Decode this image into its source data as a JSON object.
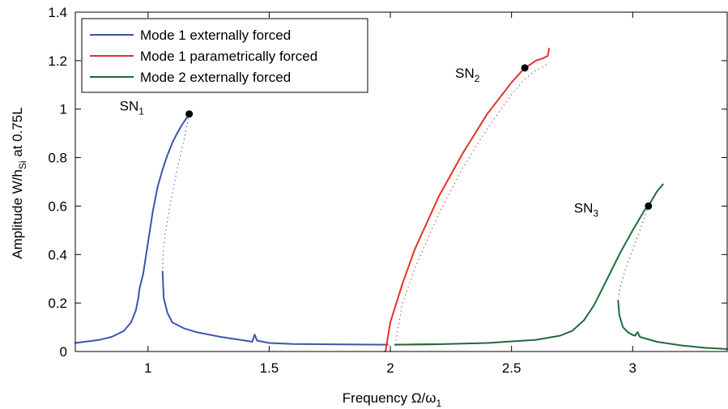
{
  "chart_data": {
    "type": "line",
    "xlabel": "Frequency Ω/ω",
    "xlabel_sub": "1",
    "ylabel": "Amplitude W/h",
    "ylabel_sub": "Si",
    "ylabel_suffix": " at 0.75L",
    "xlim": [
      0.7,
      3.39
    ],
    "ylim": [
      0,
      1.4
    ],
    "xticks": [
      1,
      1.5,
      2,
      2.5,
      3
    ],
    "xtick_labels": [
      "1",
      "1.5",
      "2",
      "2.5",
      "3"
    ],
    "yticks": [
      0,
      0.2,
      0.4,
      0.6,
      0.8,
      1,
      1.2,
      1.4
    ],
    "ytick_labels": [
      "0",
      "0.2",
      "0.4",
      "0.6",
      "0.8",
      "1",
      "1.2",
      "1.4"
    ],
    "grid": false,
    "legend_position": "top-left",
    "series": [
      {
        "name": "Mode 1 externally forced",
        "color": "#3a57a8",
        "stable": [
          [
            [
              0.7,
              0.035
            ],
            [
              0.8,
              0.048
            ],
            [
              0.85,
              0.06
            ],
            [
              0.9,
              0.085
            ],
            [
              0.93,
              0.12
            ],
            [
              0.95,
              0.17
            ],
            [
              0.96,
              0.22
            ],
            [
              0.965,
              0.26
            ],
            [
              0.98,
              0.32
            ],
            [
              1.0,
              0.45
            ],
            [
              1.02,
              0.58
            ],
            [
              1.04,
              0.68
            ],
            [
              1.06,
              0.75
            ],
            [
              1.08,
              0.81
            ],
            [
              1.1,
              0.86
            ],
            [
              1.12,
              0.9
            ],
            [
              1.14,
              0.935
            ],
            [
              1.16,
              0.965
            ],
            [
              1.17,
              0.98
            ]
          ],
          [
            [
              1.06,
              0.33
            ],
            [
              1.065,
              0.22
            ],
            [
              1.08,
              0.16
            ],
            [
              1.1,
              0.12
            ],
            [
              1.15,
              0.095
            ],
            [
              1.2,
              0.08
            ],
            [
              1.3,
              0.06
            ],
            [
              1.4,
              0.045
            ],
            [
              1.43,
              0.04
            ],
            [
              1.44,
              0.07
            ],
            [
              1.45,
              0.045
            ],
            [
              1.5,
              0.035
            ],
            [
              1.6,
              0.031
            ],
            [
              1.8,
              0.029
            ],
            [
              1.99,
              0.028
            ]
          ]
        ],
        "unstable": [
          [
            1.17,
            0.98
          ],
          [
            1.15,
            0.88
          ],
          [
            1.12,
            0.75
          ],
          [
            1.09,
            0.6
          ],
          [
            1.07,
            0.48
          ],
          [
            1.062,
            0.4
          ],
          [
            1.06,
            0.34
          ]
        ]
      },
      {
        "name": "Mode 1 parametrically forced",
        "color": "#e4312b",
        "stable": [
          [
            [
              1.98,
              0.0
            ],
            [
              1.985,
              0.03
            ],
            [
              2.0,
              0.12
            ],
            [
              2.05,
              0.28
            ],
            [
              2.1,
              0.42
            ],
            [
              2.2,
              0.64
            ],
            [
              2.3,
              0.82
            ],
            [
              2.4,
              0.98
            ],
            [
              2.5,
              1.11
            ],
            [
              2.55,
              1.165
            ],
            [
              2.6,
              1.2
            ],
            [
              2.63,
              1.21
            ],
            [
              2.65,
              1.22
            ],
            [
              2.655,
              1.25
            ]
          ],
          [
            [
              2.02,
              0.028
            ],
            [
              2.1,
              0.029
            ],
            [
              2.2,
              0.03
            ]
          ]
        ],
        "unstable": [
          [
            2.02,
            0.028
          ],
          [
            2.05,
            0.2
          ],
          [
            2.1,
            0.34
          ],
          [
            2.2,
            0.57
          ],
          [
            2.3,
            0.76
          ],
          [
            2.4,
            0.92
          ],
          [
            2.5,
            1.06
          ],
          [
            2.55,
            1.12
          ],
          [
            2.6,
            1.16
          ],
          [
            2.63,
            1.175
          ],
          [
            2.65,
            1.19
          ]
        ]
      },
      {
        "name": "Mode 2 externally forced",
        "color": "#1f6b3a",
        "stable": [
          [
            [
              2.02,
              0.028
            ],
            [
              2.2,
              0.03
            ],
            [
              2.4,
              0.035
            ],
            [
              2.6,
              0.048
            ],
            [
              2.7,
              0.065
            ],
            [
              2.75,
              0.085
            ],
            [
              2.8,
              0.13
            ],
            [
              2.84,
              0.19
            ],
            [
              2.86,
              0.23
            ],
            [
              2.87,
              0.25
            ],
            [
              2.9,
              0.31
            ],
            [
              2.95,
              0.41
            ],
            [
              3.0,
              0.5
            ],
            [
              3.05,
              0.585
            ],
            [
              3.065,
              0.6
            ],
            [
              3.1,
              0.66
            ],
            [
              3.125,
              0.69
            ]
          ],
          [
            [
              2.94,
              0.21
            ],
            [
              2.945,
              0.15
            ],
            [
              2.96,
              0.1
            ],
            [
              2.98,
              0.08
            ],
            [
              3.0,
              0.068
            ],
            [
              3.01,
              0.065
            ],
            [
              3.02,
              0.08
            ],
            [
              3.03,
              0.06
            ],
            [
              3.1,
              0.04
            ],
            [
              3.2,
              0.025
            ],
            [
              3.3,
              0.015
            ],
            [
              3.39,
              0.01
            ]
          ]
        ],
        "unstable": [
          [
            3.065,
            0.6
          ],
          [
            3.03,
            0.5
          ],
          [
            3.0,
            0.42
          ],
          [
            2.97,
            0.34
          ],
          [
            2.95,
            0.27
          ],
          [
            2.94,
            0.22
          ]
        ]
      }
    ],
    "annotations": [
      {
        "label": "SN",
        "sub": "1",
        "x": 1.17,
        "y": 0.98
      },
      {
        "label": "SN",
        "sub": "2",
        "x": 2.555,
        "y": 1.17
      },
      {
        "label": "SN",
        "sub": "3",
        "x": 3.065,
        "y": 0.6
      }
    ]
  }
}
